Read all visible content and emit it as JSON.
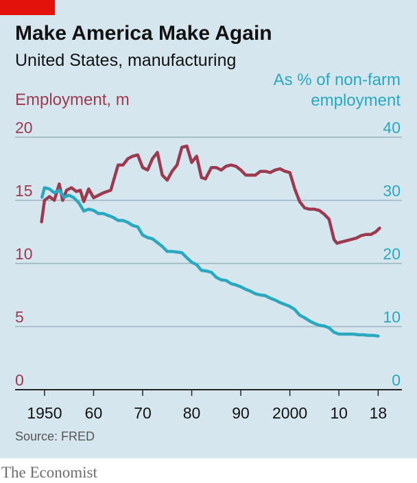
{
  "header": {
    "title": "Make America Make Again",
    "subtitle": "United States, manufacturing"
  },
  "footer": {
    "source": "Source: FRED",
    "brand": "The Economist"
  },
  "colors": {
    "background": "#d6e6ef",
    "accent_red": "#e3120b",
    "employment": "#9c3a4f",
    "share": "#29a8bf"
  },
  "chart_data": {
    "type": "line",
    "title": "Make America Make Again",
    "subtitle": "United States, manufacturing",
    "left_axis": {
      "label": "Employment, m",
      "range": [
        0,
        20
      ],
      "ticks": [
        0,
        5,
        10,
        15,
        20
      ],
      "tick_labels": [
        "0",
        "5",
        "10",
        "15",
        "20"
      ]
    },
    "right_axis": {
      "label_line1": "As % of non-farm",
      "label_line2": "employment",
      "range": [
        0,
        40
      ],
      "ticks": [
        0,
        10,
        20,
        30,
        40
      ],
      "tick_labels": [
        "0",
        "10",
        "20",
        "30",
        "40"
      ]
    },
    "x_axis": {
      "range": [
        1944,
        2022
      ],
      "ticks": [
        1950,
        1960,
        1970,
        1980,
        1990,
        2000,
        2010,
        2018
      ],
      "tick_labels": [
        "1950",
        "60",
        "70",
        "80",
        "90",
        "2000",
        "10",
        "18"
      ]
    },
    "series": [
      {
        "name": "Employment, m",
        "axis": "left",
        "x": [
          1949.4,
          1950.0,
          1951.0,
          1952.0,
          1953.0,
          1953.7,
          1954.5,
          1955.5,
          1956.5,
          1957.3,
          1958.0,
          1959.0,
          1960.0,
          1961.0,
          1962.0,
          1963.5,
          1965.0,
          1966.0,
          1967.0,
          1968.0,
          1969.0,
          1970.0,
          1971.0,
          1972.0,
          1973.0,
          1974.0,
          1975.0,
          1976.0,
          1977.0,
          1978.0,
          1979.0,
          1980.0,
          1981.0,
          1982.0,
          1982.8,
          1984.0,
          1985.0,
          1986.0,
          1987.0,
          1988.0,
          1989.0,
          1990.0,
          1991.0,
          1992.0,
          1993.0,
          1994.0,
          1995.0,
          1996.0,
          1997.0,
          1998.0,
          1999.0,
          2000.0,
          2001.0,
          2002.0,
          2003.0,
          2004.0,
          2005.0,
          2006.0,
          2007.0,
          2008.0,
          2009.0,
          2009.6,
          2010.5,
          2011.5,
          2012.5,
          2013.5,
          2014.5,
          2015.5,
          2016.5,
          2017.5,
          2018.3
        ],
        "values": [
          13.3,
          15.0,
          15.3,
          15.0,
          16.3,
          15.0,
          15.8,
          16.0,
          15.7,
          15.8,
          14.9,
          15.9,
          15.2,
          15.4,
          15.6,
          15.8,
          17.8,
          17.8,
          18.3,
          18.5,
          18.6,
          17.6,
          17.4,
          18.3,
          18.8,
          17.0,
          16.6,
          17.3,
          17.8,
          19.2,
          19.3,
          18.0,
          18.5,
          16.8,
          16.7,
          17.6,
          17.6,
          17.4,
          17.7,
          17.8,
          17.7,
          17.4,
          17.0,
          17.0,
          17.0,
          17.3,
          17.3,
          17.2,
          17.4,
          17.5,
          17.3,
          17.2,
          15.9,
          14.9,
          14.4,
          14.3,
          14.3,
          14.2,
          13.9,
          13.5,
          11.9,
          11.6,
          11.7,
          11.8,
          11.9,
          12.0,
          12.2,
          12.3,
          12.3,
          12.5,
          12.8
        ]
      },
      {
        "name": "As % of non-farm employment",
        "axis": "right",
        "x": [
          1949.5,
          1950.0,
          1951.0,
          1952.0,
          1953.0,
          1954.0,
          1955.0,
          1956.0,
          1957.0,
          1958.0,
          1959.0,
          1960.0,
          1961.0,
          1962.0,
          1963.0,
          1964.0,
          1965.0,
          1966.0,
          1967.0,
          1968.0,
          1969.0,
          1970.0,
          1971.0,
          1972.0,
          1973.0,
          1974.0,
          1975.0,
          1976.0,
          1977.0,
          1978.0,
          1979.0,
          1980.0,
          1981.0,
          1982.0,
          1983.0,
          1984.0,
          1985.0,
          1986.0,
          1987.0,
          1988.0,
          1989.0,
          1990.0,
          1991.0,
          1992.0,
          1993.0,
          1994.0,
          1995.0,
          1996.0,
          1997.0,
          1998.0,
          1999.0,
          2000.0,
          2001.0,
          2002.0,
          2003.0,
          2004.0,
          2005.0,
          2006.0,
          2007.0,
          2008.0,
          2009.0,
          2010.0,
          2011.0,
          2012.0,
          2013.0,
          2014.0,
          2015.0,
          2016.0,
          2017.0,
          2018.0
        ],
        "values": [
          30.5,
          32.0,
          31.8,
          31.2,
          31.6,
          30.5,
          30.8,
          30.4,
          29.6,
          28.3,
          28.6,
          28.4,
          27.9,
          27.9,
          27.6,
          27.3,
          26.8,
          26.8,
          26.5,
          26.0,
          25.8,
          24.5,
          24.1,
          23.9,
          23.3,
          22.7,
          21.9,
          21.9,
          21.8,
          21.7,
          20.9,
          20.2,
          19.8,
          18.9,
          18.8,
          18.6,
          17.8,
          17.4,
          17.3,
          16.8,
          16.6,
          16.3,
          15.9,
          15.6,
          15.2,
          15.0,
          14.9,
          14.5,
          14.2,
          13.8,
          13.5,
          13.2,
          12.7,
          11.8,
          11.4,
          10.9,
          10.5,
          10.2,
          10.1,
          9.8,
          9.1,
          8.8,
          8.8,
          8.8,
          8.8,
          8.7,
          8.7,
          8.6,
          8.6,
          8.5
        ]
      }
    ]
  }
}
